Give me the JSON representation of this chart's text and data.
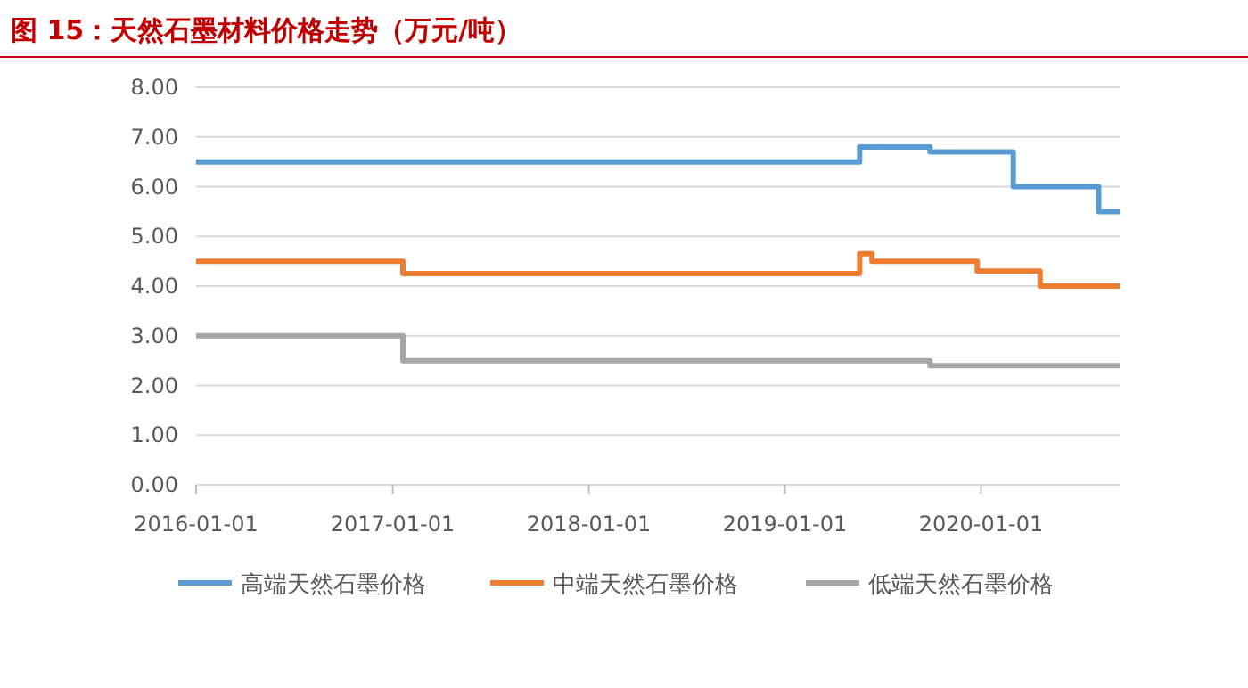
{
  "chart_data": {
    "type": "step",
    "title": "图 15：天然石墨材料价格走势（万元/吨）",
    "xlim": [
      "2016-01-01",
      "2020-09-15"
    ],
    "xticks": [
      {
        "value": "2016-01-01",
        "label": "2016-01-01"
      },
      {
        "value": "2017-01-01",
        "label": "2017-01-01"
      },
      {
        "value": "2018-01-01",
        "label": "2018-01-01"
      },
      {
        "value": "2019-01-01",
        "label": "2019-01-01"
      },
      {
        "value": "2020-01-01",
        "label": "2020-01-01"
      }
    ],
    "ylim": [
      0,
      8
    ],
    "yticks": [
      {
        "value": 0,
        "label": "0.00"
      },
      {
        "value": 1,
        "label": "1.00"
      },
      {
        "value": 2,
        "label": "2.00"
      },
      {
        "value": 3,
        "label": "3.00"
      },
      {
        "value": 4,
        "label": "4.00"
      },
      {
        "value": 5,
        "label": "5.00"
      },
      {
        "value": 6,
        "label": "6.00"
      },
      {
        "value": 7,
        "label": "7.00"
      },
      {
        "value": 8,
        "label": "8.00"
      }
    ],
    "grid": "y",
    "legend": "bottom",
    "line_style": "solid",
    "series": [
      {
        "name": "高端天然石墨价格",
        "color": "#5b9bd5",
        "x": [
          "2016-01-01",
          "2019-05-20",
          "2019-09-28",
          "2020-03-01",
          "2020-08-07",
          "2020-09-15"
        ],
        "values": [
          6.5,
          6.8,
          6.7,
          6.0,
          5.5,
          5.5
        ]
      },
      {
        "name": "中端天然石墨价格",
        "color": "#ed7d31",
        "x": [
          "2016-01-01",
          "2017-01-20",
          "2019-05-20",
          "2019-06-12",
          "2019-12-25",
          "2020-04-20",
          "2020-09-15"
        ],
        "values": [
          4.5,
          4.25,
          4.65,
          4.5,
          4.3,
          4.0,
          4.0
        ]
      },
      {
        "name": "低端天然石墨价格",
        "color": "#a5a5a5",
        "x": [
          "2016-01-01",
          "2017-01-20",
          "2019-09-28",
          "2020-09-15"
        ],
        "values": [
          3.0,
          2.5,
          2.4,
          2.4
        ]
      }
    ]
  }
}
